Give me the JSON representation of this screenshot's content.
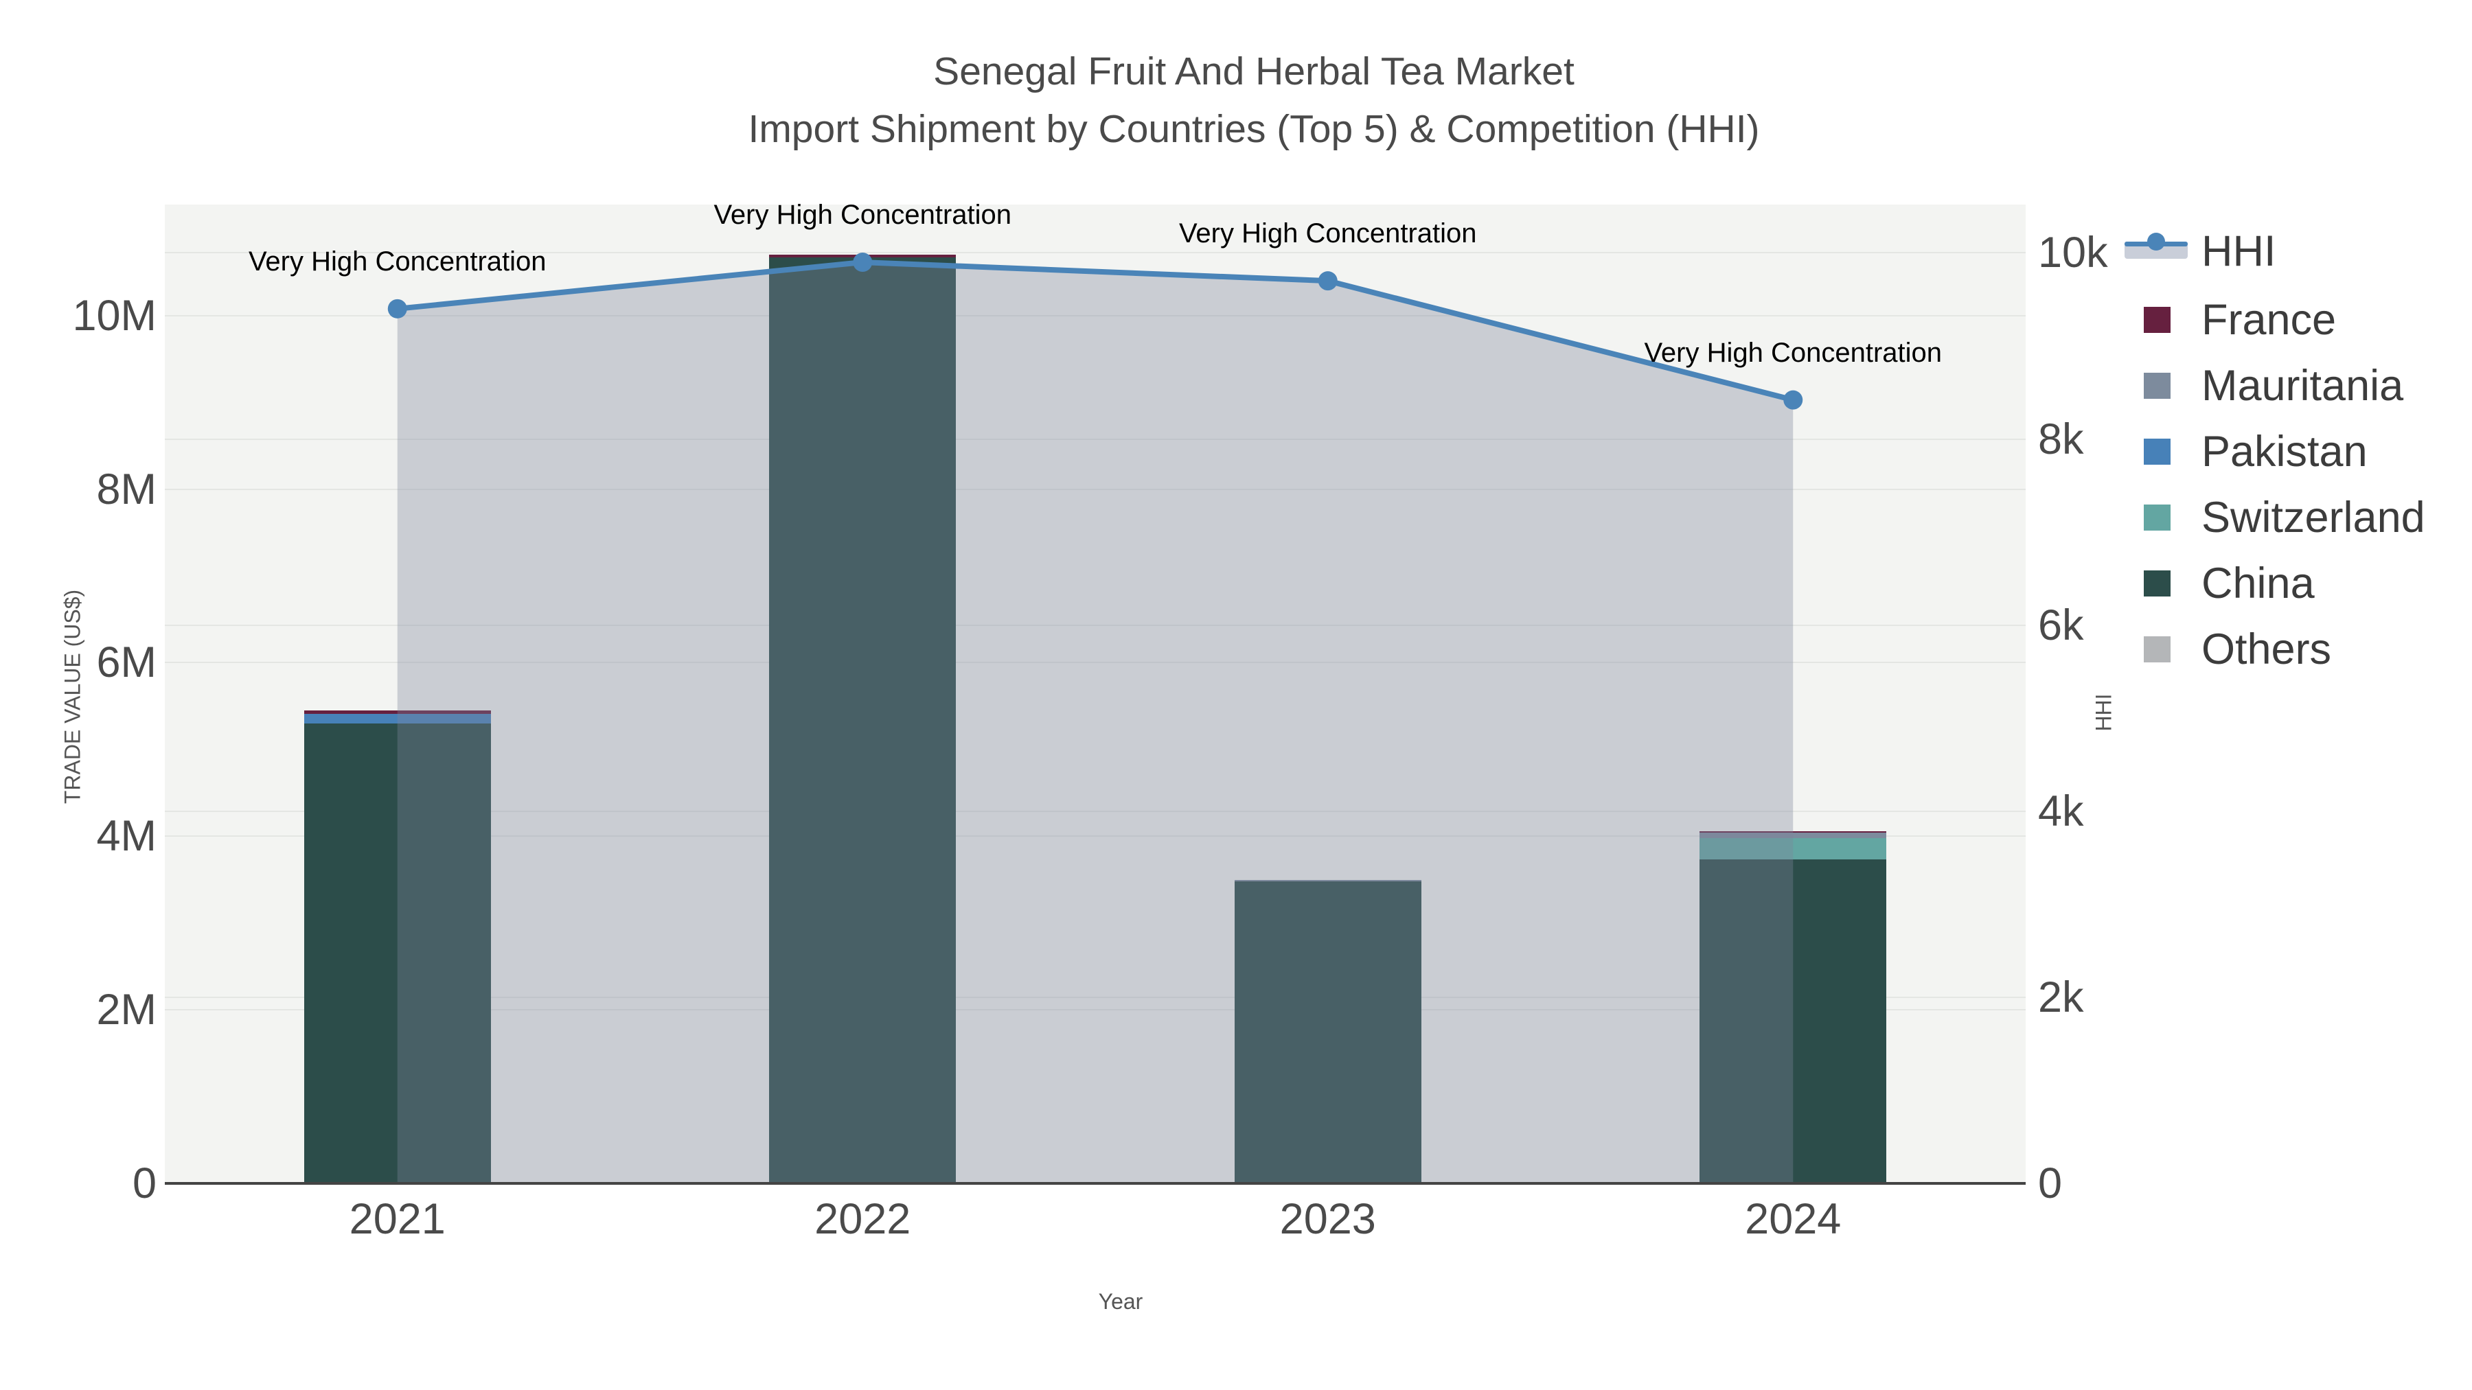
{
  "title": {
    "line1": "Senegal Fruit And Herbal Tea Market",
    "line2": "Import Shipment by Countries (Top 5) & Competition (HHI)"
  },
  "chart_data": {
    "type": "combo: stacked bar (trade value) + line with area fill (HHI)",
    "categories": [
      "2021",
      "2022",
      "2023",
      "2024"
    ],
    "bar_series": [
      {
        "name": "France",
        "color": "#66203f",
        "values": [
          40000,
          30000,
          0,
          15000
        ]
      },
      {
        "name": "Mauritania",
        "color": "#7d8b9d",
        "values": [
          0,
          0,
          20000,
          70000
        ]
      },
      {
        "name": "Pakistan",
        "color": "#4781b8",
        "values": [
          110000,
          0,
          0,
          0
        ]
      },
      {
        "name": "Switzerland",
        "color": "#63a6a2",
        "values": [
          0,
          0,
          0,
          245000
        ]
      },
      {
        "name": "China",
        "color": "#2c4d4a",
        "values": [
          5300000,
          10670000,
          3480000,
          3730000
        ]
      },
      {
        "name": "Others",
        "color": "#b4b6b8",
        "values": [
          0,
          0,
          0,
          0
        ]
      }
    ],
    "stack_order_bottom_to_top": [
      "Others",
      "China",
      "Switzerland",
      "Pakistan",
      "Mauritania",
      "France"
    ],
    "line_series": {
      "name": "HHI",
      "color": "#4a84b8",
      "area_fill_color": "rgba(125,132,155,0.35)",
      "values": [
        9400,
        9900,
        9700,
        8420
      ]
    },
    "annotations": [
      {
        "category": "2021",
        "text": "Very High Concentration"
      },
      {
        "category": "2022",
        "text": "Very High Concentration"
      },
      {
        "category": "2023",
        "text": "Very High Concentration"
      },
      {
        "category": "2024",
        "text": "Very High Concentration"
      }
    ],
    "axes": {
      "x": {
        "title": "Year"
      },
      "y_left": {
        "title": "TRADE VALUE (US$)",
        "range": [
          0,
          11280000
        ],
        "ticks": [
          {
            "value": 0,
            "label": "0"
          },
          {
            "value": 2000000,
            "label": "2M"
          },
          {
            "value": 4000000,
            "label": "4M"
          },
          {
            "value": 6000000,
            "label": "6M"
          },
          {
            "value": 8000000,
            "label": "8M"
          },
          {
            "value": 10000000,
            "label": "10M"
          }
        ]
      },
      "y_right": {
        "title": "HHI",
        "range": [
          0,
          10520
        ],
        "ticks": [
          {
            "value": 0,
            "label": "0"
          },
          {
            "value": 2000,
            "label": "2k"
          },
          {
            "value": 4000,
            "label": "4k"
          },
          {
            "value": 6000,
            "label": "6k"
          },
          {
            "value": 8000,
            "label": "8k"
          },
          {
            "value": 10000,
            "label": "10k"
          }
        ]
      }
    },
    "legend": [
      "HHI",
      "France",
      "Mauritania",
      "Pakistan",
      "Switzerland",
      "China",
      "Others"
    ]
  }
}
